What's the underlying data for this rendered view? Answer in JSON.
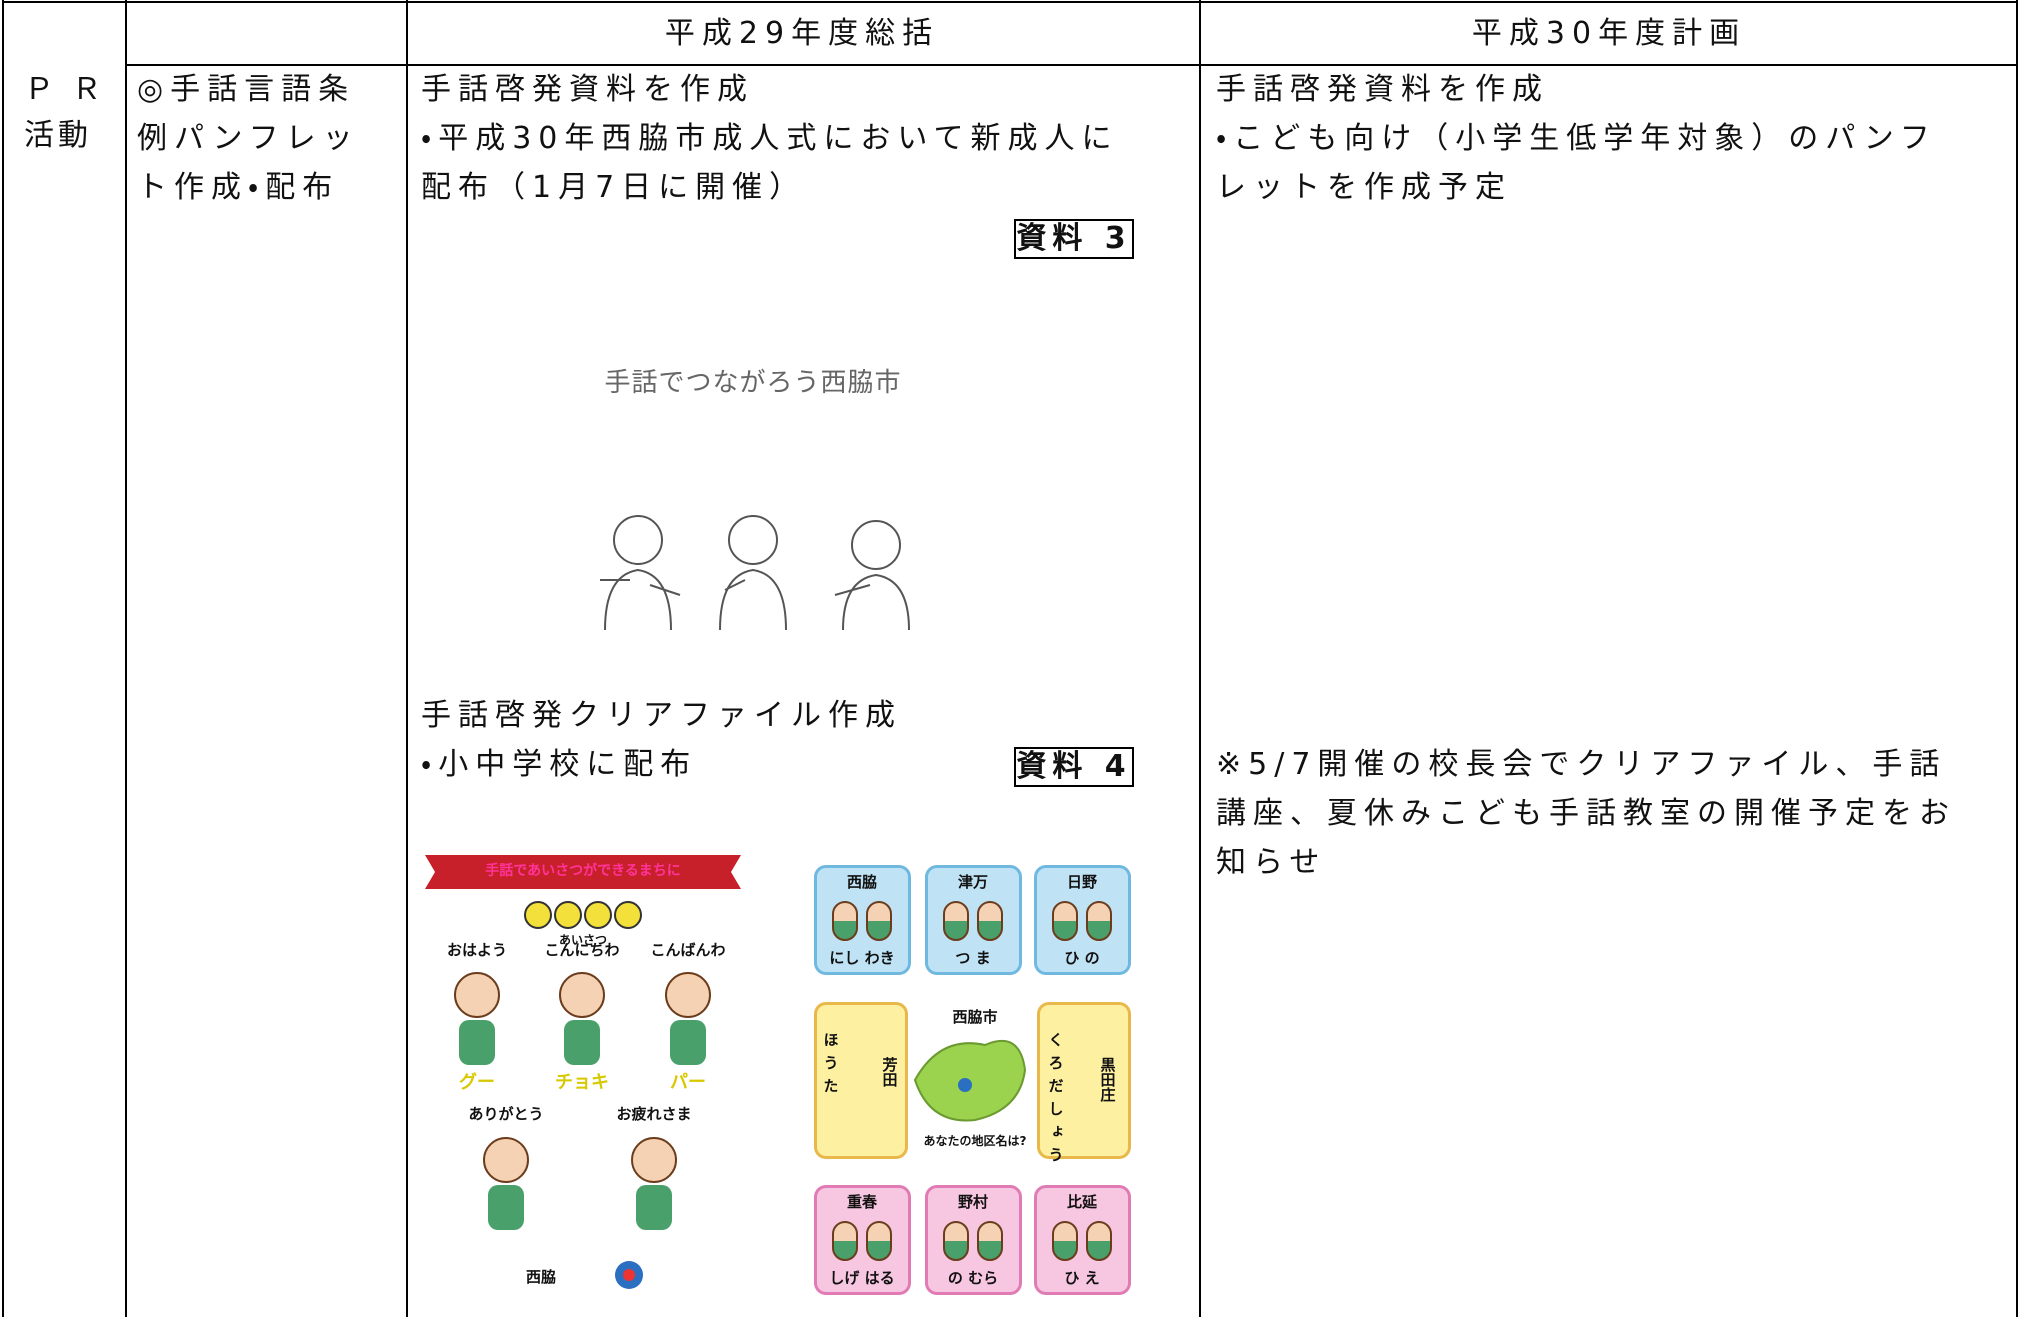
{
  "table": {
    "header": [
      "平成29年度総括",
      "平成30年度計画"
    ],
    "category": [
      "Ｐ Ｒ",
      "活動"
    ],
    "item": [
      "◎手話言語条",
      "例パンフレッ",
      "ト作成・配布"
    ],
    "summary": {
      "pamphlet_lines": [
        "手話啓発資料を作成",
        "・平成30年西脇市成人式において新成人に",
        "配布（1月7日に開催）"
      ],
      "pamphlet_ref": "資料 3",
      "pamphlet": {
        "title": "手話でつながろう西脇市"
      },
      "clear_file_lines": [
        "手話啓発クリアファイル作成",
        "・小中学校に配布"
      ],
      "clear_file_ref": "資料 4",
      "clear_file": {
        "banner": "手話であいさつができるまちに",
        "heading": "あいさつ",
        "greetings": [
          "おはよう",
          "こんにちわ",
          "こんばんわ"
        ],
        "hands": [
          "グー",
          "チョキ",
          "パー"
        ],
        "thanks": [
          "ありがとう",
          "お疲れさま"
        ],
        "footer": "西脇",
        "districts": [
          {
            "name": "西脇",
            "reading": "にし わき"
          },
          {
            "name": "津万",
            "reading": "つ ま"
          },
          {
            "name": "日野",
            "reading": "ひ の"
          },
          {
            "name": "重春",
            "reading": "しげ はる"
          },
          {
            "name": "野村",
            "reading": "の むら"
          },
          {
            "name": "比延",
            "reading": "ひ え"
          }
        ],
        "side_districts": [
          {
            "name": "芳田",
            "reading": "ほうた"
          },
          {
            "name": "黒田庄",
            "reading": "くろだしょう"
          }
        ],
        "map_title": "西脇市",
        "map_question": "あなたの地区名は?"
      }
    },
    "plan": {
      "material_lines": [
        "手話啓発資料を作成",
        "・こども向け（小学生低学年対象）のパンフ",
        "レットを作成予定"
      ],
      "notice_lines": [
        "※5/7開催の校長会でクリアファイル、手話",
        "講座、夏休みこども手話教室の開催予定をお",
        "知らせ"
      ]
    }
  }
}
